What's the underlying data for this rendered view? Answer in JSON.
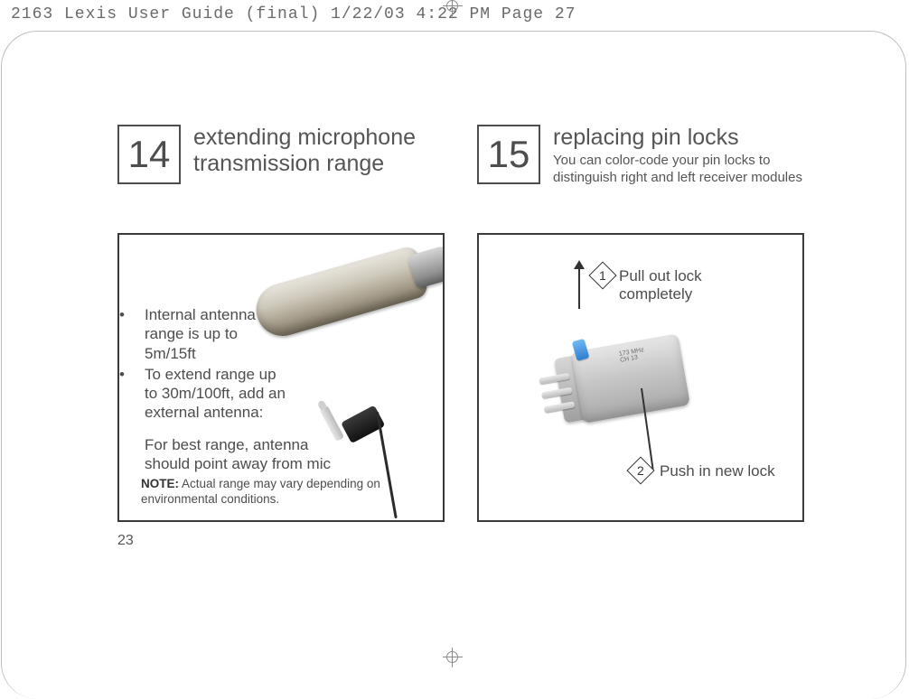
{
  "crop_mark_text": "2163 Lexis User Guide (final)  1/22/03  4:22 PM  Page 27",
  "page_number": "23",
  "left": {
    "number": "14",
    "title_line1": "extending microphone",
    "title_line2": "transmission range",
    "bullet1_l1": "Internal antenna",
    "bullet1_l2": "range is up to",
    "bullet1_l3": "5m/15ft",
    "bullet2_l1": "To extend range up",
    "bullet2_l2": "to 30m/100ft, add an",
    "bullet2_l3": "external antenna:",
    "best_l1": "For best range, antenna",
    "best_l2": "should point away from mic",
    "note_label": "NOTE:",
    "note_text": " Actual range may vary depending on environmental conditions."
  },
  "right": {
    "number": "15",
    "title": "replacing pin locks",
    "sub_l1": "You can color-code your pin locks to",
    "sub_l2": "distinguish right and left receiver modules",
    "step1_num": "1",
    "step1_l1": "Pull out lock",
    "step1_l2": "completely",
    "step2_num": "2",
    "step2_text": "Push in new lock",
    "module_marking_l1": "173 MHz",
    "module_marking_l2": "CH  13"
  },
  "style": {
    "text_color": "#555555",
    "border_color": "#3a3a3a",
    "frame_color": "#bdbdbd",
    "accent_blue": "#2e7fcf",
    "body_font_size_pt": 13,
    "title_font_size_pt": 19,
    "number_font_size_pt": 32
  }
}
